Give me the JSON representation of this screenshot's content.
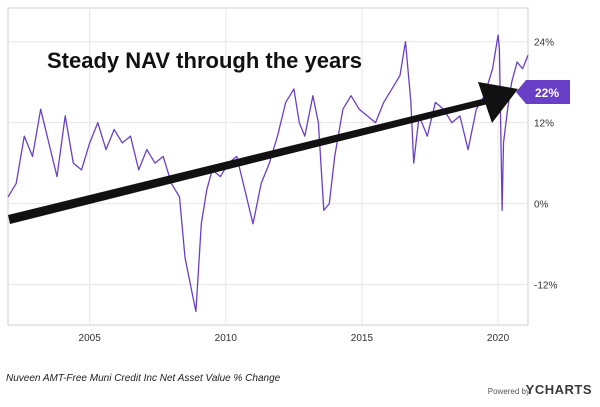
{
  "chart_data": {
    "type": "line",
    "title": "",
    "annotation": "Steady NAV through the years",
    "caption": "Nuveen AMT-Free Muni Credit Inc Net Asset Value % Change",
    "x_tick_labels": [
      "2005",
      "2010",
      "2015",
      "2020"
    ],
    "y_tick_labels": [
      "24%",
      "12%",
      "0%",
      "-12%"
    ],
    "xlim": [
      2002.0,
      2021.1
    ],
    "ylim": [
      -18,
      29
    ],
    "grid": true,
    "line_color": "#6a3fc8",
    "last_value_label": "22%",
    "series": [
      {
        "x": [
          2002.0,
          2002.3,
          2002.6,
          2002.9,
          2003.2,
          2003.5,
          2003.8,
          2004.1,
          2004.4,
          2004.7,
          2005.0,
          2005.3,
          2005.6,
          2005.9,
          2006.2,
          2006.5,
          2006.8,
          2007.1,
          2007.4,
          2007.7,
          2008.0,
          2008.3,
          2008.5,
          2008.7,
          2008.9,
          2009.1,
          2009.3,
          2009.5,
          2009.8,
          2010.1,
          2010.4,
          2010.7,
          2011.0,
          2011.3,
          2011.6,
          2011.9,
          2012.2,
          2012.5,
          2012.7,
          2012.9,
          2013.2,
          2013.4,
          2013.6,
          2013.8,
          2014.0,
          2014.3,
          2014.6,
          2014.9,
          2015.2,
          2015.5,
          2015.8,
          2016.1,
          2016.4,
          2016.6,
          2016.8,
          2016.9,
          2017.1,
          2017.4,
          2017.7,
          2018.0,
          2018.3,
          2018.6,
          2018.9,
          2019.2,
          2019.5,
          2019.8,
          2020.0,
          2020.05,
          2020.15,
          2020.2,
          2020.35,
          2020.5,
          2020.7,
          2020.9,
          2021.1
        ],
        "values": [
          1,
          3,
          10,
          7,
          14,
          9,
          4,
          13,
          6,
          5,
          9,
          12,
          8,
          11,
          9,
          10,
          5,
          8,
          6,
          7,
          3,
          1,
          -8,
          -12,
          -16,
          -3,
          2,
          5,
          4,
          6,
          7,
          2,
          -3,
          3,
          6,
          10,
          15,
          17,
          12,
          10,
          16,
          12,
          -1,
          0,
          7,
          14,
          16,
          14,
          13,
          12,
          15,
          17,
          19,
          24,
          15,
          6,
          13,
          10,
          15,
          14,
          12,
          13,
          8,
          14,
          16,
          20,
          25,
          23,
          -1,
          9,
          14,
          18,
          21,
          20,
          22
        ]
      }
    ]
  },
  "footer": {
    "powered_by": "Powered by",
    "brand": "YCHARTS"
  }
}
